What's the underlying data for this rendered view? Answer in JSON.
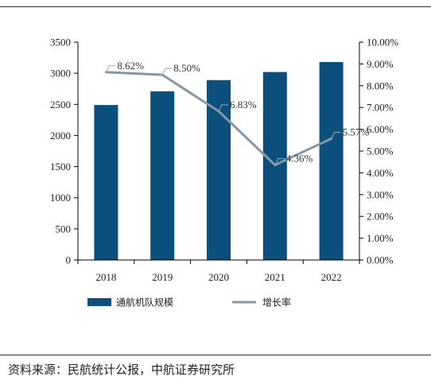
{
  "chart_data": {
    "type": "bar",
    "categories": [
      "2018",
      "2019",
      "2020",
      "2021",
      "2022"
    ],
    "series": [
      {
        "name": "通航机队规模",
        "type": "bar",
        "axis": "left",
        "values": [
          2490,
          2710,
          2890,
          3020,
          3180
        ],
        "color": "#0b4f7c"
      },
      {
        "name": "增长率",
        "type": "line",
        "axis": "right",
        "values": [
          8.62,
          8.5,
          6.83,
          4.36,
          5.57
        ],
        "value_labels": [
          "8.62%",
          "8.50%",
          "6.83%",
          "4.36%",
          "5.57%"
        ],
        "color": "#8497a8"
      }
    ],
    "left_axis": {
      "ylim": [
        0,
        3500
      ],
      "ticks": [
        "0",
        "500",
        "1000",
        "1500",
        "2000",
        "2500",
        "3000",
        "3500"
      ]
    },
    "right_axis": {
      "ylim": [
        0,
        10
      ],
      "ticks": [
        "0.00%",
        "1.00%",
        "2.00%",
        "3.00%",
        "4.00%",
        "5.00%",
        "6.00%",
        "7.00%",
        "8.00%",
        "9.00%",
        "10.00%"
      ]
    },
    "grid": false,
    "legend_placement": "bottom"
  },
  "source": "资料来源：民航统计公报，中航证券研究所"
}
